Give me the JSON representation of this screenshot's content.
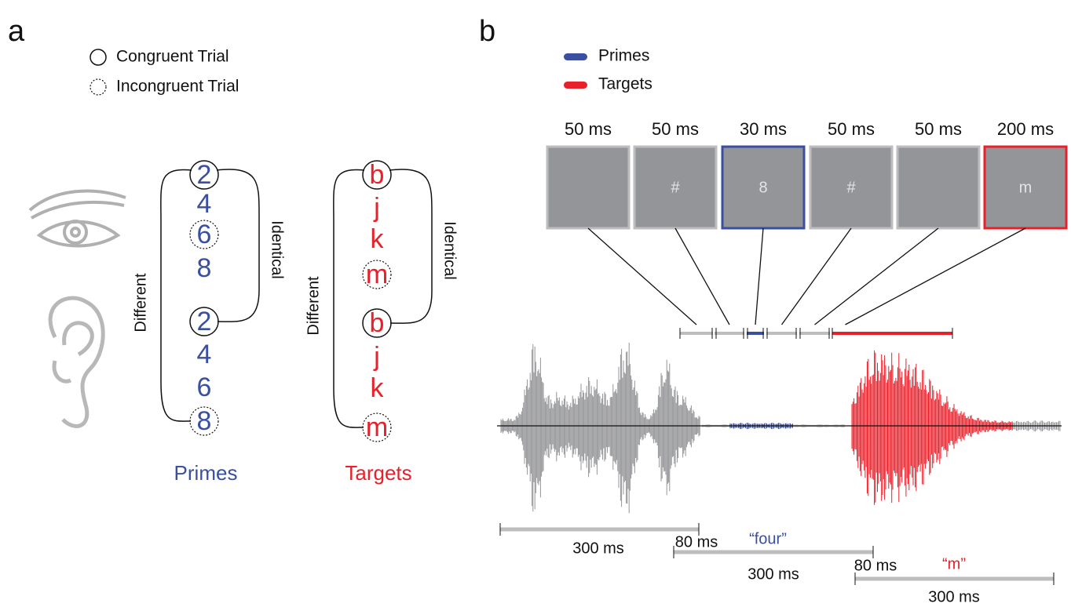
{
  "panel_a": {
    "label": "a",
    "legend": [
      "Congruent Trial",
      "Incongruent Trial"
    ],
    "primes": {
      "items": [
        "2",
        "4",
        "6",
        "8",
        "2",
        "4",
        "6",
        "8"
      ],
      "different": "Different",
      "identical": "Identical",
      "title": "Primes"
    },
    "targets": {
      "items": [
        "b",
        "j",
        "k",
        "m",
        "b",
        "j",
        "k",
        "m"
      ],
      "different": "Different",
      "identical": "Identical",
      "title": "Targets"
    }
  },
  "panel_b": {
    "label": "b",
    "legend": [
      "Primes",
      "Targets"
    ],
    "frames": [
      {
        "duration": "50 ms"
      },
      {
        "duration": "50 ms",
        "content": "#"
      },
      {
        "duration": "30 ms",
        "content": "8"
      },
      {
        "duration": "50 ms",
        "content": "#"
      },
      {
        "duration": "50 ms"
      },
      {
        "duration": "200 ms",
        "content": "m"
      }
    ],
    "timeline": {
      "first_duration": "300 ms",
      "prime_offset": "80 ms",
      "prime_word": "“four”",
      "prime_duration": "300 ms",
      "target_offset": "80 ms",
      "target_word": "“m”",
      "target_duration": "300 ms"
    }
  }
}
